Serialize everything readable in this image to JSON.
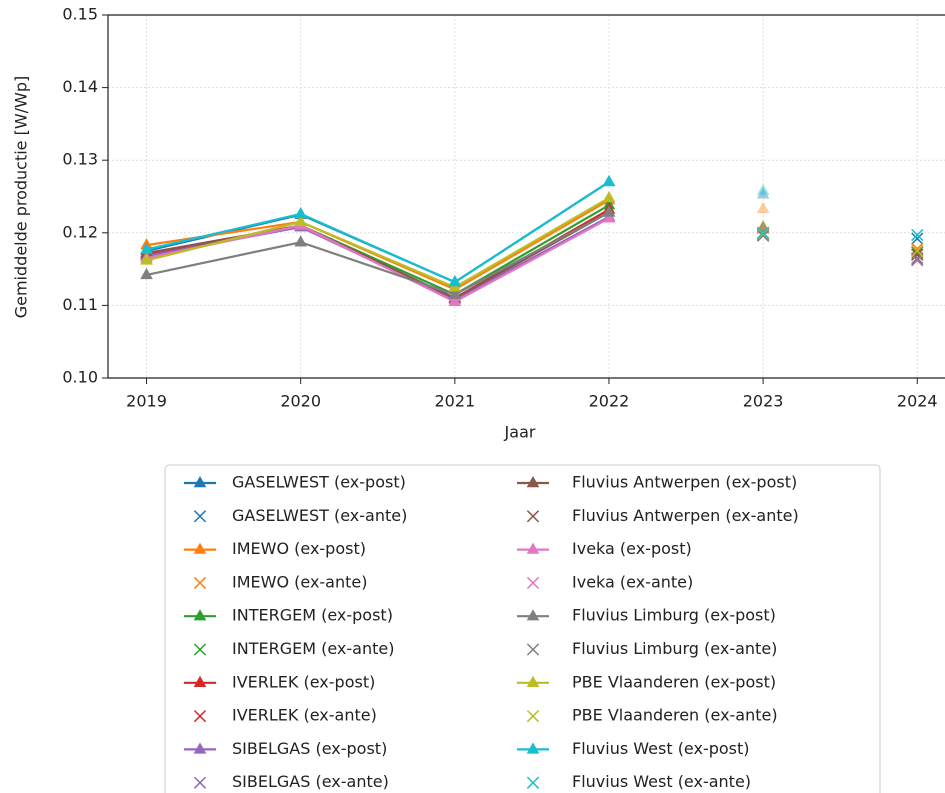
{
  "chart_data": {
    "type": "line",
    "xlabel": "Jaar",
    "ylabel": "Gemiddelde productie [W/Wp]",
    "xlim": [
      2018.75,
      2024.18
    ],
    "xticks": [
      2019,
      2020,
      2021,
      2022,
      2023,
      2024
    ],
    "ylim": [
      0.1,
      0.15
    ],
    "yticks": [
      {
        "value": 0.1,
        "label": "0.10"
      },
      0.11,
      0.12,
      0.13,
      0.14,
      0.15
    ],
    "grid": true,
    "faded_x": [
      2023
    ],
    "legend": "below",
    "series": [
      {
        "name": "GASELWEST (ex-post)",
        "color": "#1f77b4",
        "marker": "triangle",
        "x": [
          2019,
          2020,
          2021,
          2022,
          2023
        ],
        "values": [
          0.1175,
          0.1225,
          0.1132,
          0.127,
          0.1253
        ]
      },
      {
        "name": "GASELWEST (ex-ante)",
        "color": "#1f77b4",
        "marker": "x",
        "x": [
          2023,
          2024
        ],
        "values": [
          0.1199,
          0.1192
        ]
      },
      {
        "name": "IMEWO (ex-post)",
        "color": "#ff7f0e",
        "marker": "triangle",
        "x": [
          2019,
          2020,
          2021,
          2022,
          2023
        ],
        "values": [
          0.1183,
          0.1215,
          0.1122,
          0.1245,
          0.1233
        ]
      },
      {
        "name": "IMEWO (ex-ante)",
        "color": "#ff7f0e",
        "marker": "x",
        "x": [
          2023,
          2024
        ],
        "values": [
          0.12,
          0.1178
        ]
      },
      {
        "name": "INTERGEM (ex-post)",
        "color": "#2ca02c",
        "marker": "triangle",
        "x": [
          2019,
          2020,
          2021,
          2022,
          2023
        ],
        "values": [
          0.1168,
          0.121,
          0.1115,
          0.1238,
          0.1208
        ]
      },
      {
        "name": "INTERGEM (ex-ante)",
        "color": "#2ca02c",
        "marker": "x",
        "x": [
          2023,
          2024
        ],
        "values": [
          0.1199,
          0.1173
        ]
      },
      {
        "name": "IVERLEK (ex-post)",
        "color": "#d62728",
        "marker": "triangle",
        "x": [
          2019,
          2020,
          2021,
          2022,
          2023
        ],
        "values": [
          0.117,
          0.1208,
          0.111,
          0.1232,
          0.1207
        ]
      },
      {
        "name": "IVERLEK (ex-ante)",
        "color": "#d62728",
        "marker": "x",
        "x": [
          2023,
          2024
        ],
        "values": [
          0.1198,
          0.117
        ]
      },
      {
        "name": "SIBELGAS (ex-post)",
        "color": "#9467bd",
        "marker": "triangle",
        "x": [
          2019,
          2020,
          2021,
          2022,
          2023
        ],
        "values": [
          0.1168,
          0.1208,
          0.1108,
          0.1222,
          0.1205
        ]
      },
      {
        "name": "SIBELGAS (ex-ante)",
        "color": "#9467bd",
        "marker": "x",
        "x": [
          2023,
          2024
        ],
        "values": [
          0.1197,
          0.1165
        ]
      },
      {
        "name": "Fluvius Antwerpen (ex-post)",
        "color": "#8c564b",
        "marker": "triangle",
        "x": [
          2019,
          2020,
          2021,
          2022,
          2023
        ],
        "values": [
          0.1172,
          0.121,
          0.111,
          0.1228,
          0.1206
        ]
      },
      {
        "name": "Fluvius Antwerpen (ex-ante)",
        "color": "#8c564b",
        "marker": "x",
        "x": [
          2023,
          2024
        ],
        "values": [
          0.1198,
          0.117
        ]
      },
      {
        "name": "Iveka (ex-post)",
        "color": "#e377c2",
        "marker": "triangle",
        "x": [
          2019,
          2020,
          2021,
          2022,
          2023
        ],
        "values": [
          0.1165,
          0.121,
          0.1105,
          0.122,
          0.1204
        ]
      },
      {
        "name": "Iveka (ex-ante)",
        "color": "#e377c2",
        "marker": "x",
        "x": [
          2023,
          2024
        ],
        "values": [
          0.1197,
          0.1162
        ]
      },
      {
        "name": "Fluvius Limburg (ex-post)",
        "color": "#7f7f7f",
        "marker": "triangle",
        "x": [
          2019,
          2020,
          2021,
          2022,
          2023
        ],
        "values": [
          0.1142,
          0.1187,
          0.1115,
          0.1228,
          0.1205
        ]
      },
      {
        "name": "Fluvius Limburg (ex-ante)",
        "color": "#7f7f7f",
        "marker": "x",
        "x": [
          2023,
          2024
        ],
        "values": [
          0.1196,
          0.1163
        ]
      },
      {
        "name": "PBE Vlaanderen (ex-post)",
        "color": "#bcbd22",
        "marker": "triangle",
        "x": [
          2019,
          2020,
          2021,
          2022,
          2023
        ],
        "values": [
          0.1162,
          0.1215,
          0.1125,
          0.1248,
          0.1208
        ]
      },
      {
        "name": "PBE Vlaanderen (ex-ante)",
        "color": "#bcbd22",
        "marker": "x",
        "x": [
          2023,
          2024
        ],
        "values": [
          0.1199,
          0.1175
        ]
      },
      {
        "name": "Fluvius West (ex-post)",
        "color": "#17becf",
        "marker": "triangle",
        "x": [
          2019,
          2020,
          2021,
          2022,
          2023
        ],
        "values": [
          0.1177,
          0.1226,
          0.1132,
          0.127,
          0.1258
        ]
      },
      {
        "name": "Fluvius West (ex-ante)",
        "color": "#17becf",
        "marker": "x",
        "x": [
          2023,
          2024
        ],
        "values": [
          0.12,
          0.1197
        ]
      }
    ]
  }
}
